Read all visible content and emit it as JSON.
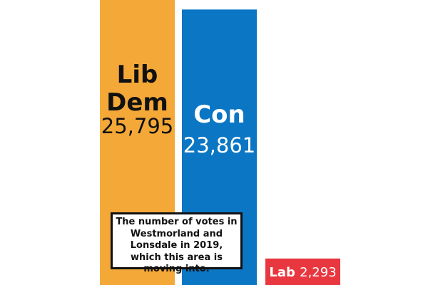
{
  "chart_data": {
    "type": "bar",
    "categories": [
      "Lib Dem",
      "Con",
      "Lab"
    ],
    "values": [
      25795,
      23861,
      2293
    ],
    "value_labels": [
      "25,795",
      "23,861",
      "2,293"
    ],
    "colors": [
      "#f4a838",
      "#0a76c4",
      "#e8373f"
    ],
    "annotation": "The number of votes in Westmorland and Lonsdale in 2019, which this area is moving into.",
    "title": "",
    "xlabel": "",
    "ylabel": "",
    "grid": false,
    "legend": "none"
  }
}
